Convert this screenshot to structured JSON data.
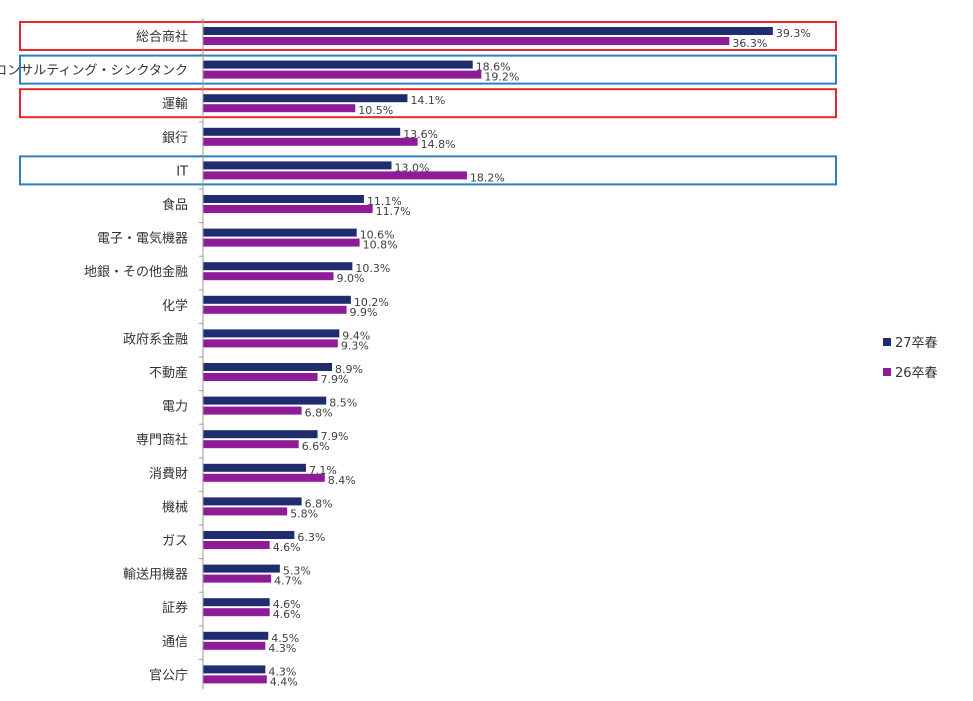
{
  "chart_data": {
    "type": "bar",
    "orientation": "horizontal",
    "categories": [
      "総合商社",
      "コンサルティング・シンクタンク",
      "運輸",
      "銀行",
      "IT",
      "食品",
      "電子・電気機器",
      "地銀・その他金融",
      "化学",
      "政府系金融",
      "不動産",
      "電力",
      "専門商社",
      "消費財",
      "機械",
      "ガス",
      "輸送用機器",
      "証券",
      "通信",
      "官公庁"
    ],
    "series": [
      {
        "name": "27卒春",
        "color": "#1f2d6e",
        "values": [
          39.3,
          18.6,
          14.1,
          13.6,
          13.0,
          11.1,
          10.6,
          10.3,
          10.2,
          9.4,
          8.9,
          8.5,
          7.9,
          7.1,
          6.8,
          6.3,
          5.3,
          4.6,
          4.5,
          4.3
        ],
        "labels": [
          "39.3%",
          "18.6%",
          "14.1%",
          "13.6%",
          "13.0%",
          "11.1%",
          "10.6%",
          "10.3%",
          "10.2%",
          "9.4%",
          "8.9%",
          "8.5%",
          "7.9%",
          "7.1%",
          "6.8%",
          "6.3%",
          "5.3%",
          "4.6%",
          "4.5%",
          "4.3%"
        ]
      },
      {
        "name": "26卒春",
        "color": "#8e1b97",
        "values": [
          36.3,
          19.2,
          10.5,
          14.8,
          18.2,
          11.7,
          10.8,
          9.0,
          9.9,
          9.3,
          7.9,
          6.8,
          6.6,
          8.4,
          5.8,
          4.6,
          4.7,
          4.6,
          4.3,
          4.4
        ],
        "labels": [
          "36.3%",
          "19.2%",
          "10.5%",
          "14.8%",
          "18.2%",
          "11.7%",
          "10.8%",
          "9.0%",
          "9.9%",
          "9.3%",
          "7.9%",
          "6.8%",
          "6.6%",
          "8.4%",
          "5.8%",
          "4.6%",
          "4.7%",
          "4.6%",
          "4.3%",
          "4.4%"
        ]
      }
    ],
    "xlim": [
      0,
      40
    ],
    "grid": false,
    "legend_position": "right",
    "highlights": [
      {
        "category": "総合商社",
        "color": "#e8262c"
      },
      {
        "category": "コンサルティング・シンクタンク",
        "color": "#2a7fc1"
      },
      {
        "category": "運輸",
        "color": "#e8262c"
      },
      {
        "category": "IT",
        "color": "#2a7fc1"
      }
    ]
  }
}
